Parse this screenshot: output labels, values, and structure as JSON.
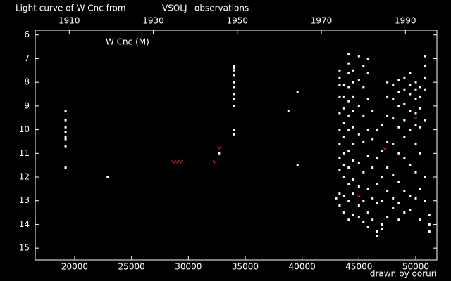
{
  "chart_data": {
    "type": "scatter",
    "title": {
      "prefix": "Light curve of W Cnc from",
      "source": "VSOLJ",
      "suffix": "observations"
    },
    "annotation": "W Cnc (M)",
    "credit": "drawn by ooruri",
    "xlim": [
      16530,
      51860
    ],
    "xticks": [
      20000,
      25000,
      30000,
      35000,
      40000,
      45000,
      50000
    ],
    "x2lim": [
      1901.9,
      1997.5
    ],
    "x2ticks": [
      1910,
      1930,
      1950,
      1970,
      1990
    ],
    "ylim": [
      15.5,
      5.8
    ],
    "yticks": [
      6,
      7,
      8,
      9,
      10,
      11,
      12,
      13,
      14,
      15
    ],
    "series": [
      {
        "color": "#ffffff",
        "marker": "dot",
        "x": [
          19200,
          19200,
          19200,
          19200,
          19200,
          19200,
          19200,
          19200,
          22900,
          32700,
          34000,
          34000,
          34000,
          34000,
          34000,
          34000,
          34000,
          34000,
          34000,
          34000,
          34000,
          38800,
          39600,
          39600,
          43000,
          43300,
          43300,
          43300,
          43300,
          43300,
          43300,
          43300,
          43300,
          43300,
          43300,
          43300,
          43700,
          43700,
          43700,
          43700,
          43700,
          43700,
          43700,
          43700,
          43700,
          43700,
          44100,
          44100,
          44100,
          44100,
          44100,
          44100,
          44100,
          44100,
          44100,
          44100,
          44100,
          44100,
          44500,
          44500,
          44500,
          44500,
          44500,
          44500,
          44500,
          44500,
          44500,
          44500,
          45000,
          45000,
          45000,
          45000,
          45000,
          45000,
          45000,
          45000,
          45400,
          45400,
          45400,
          45400,
          45400,
          45400,
          45400,
          45800,
          45800,
          45800,
          45800,
          45800,
          45800,
          45800,
          45800,
          46200,
          46200,
          46200,
          46200,
          46200,
          46600,
          46600,
          46600,
          46600,
          46600,
          46600,
          47000,
          47000,
          47000,
          47000,
          47000,
          47000,
          47500,
          47500,
          47500,
          47500,
          47500,
          47500,
          47500,
          48000,
          48000,
          48000,
          48000,
          48000,
          48000,
          48000,
          48500,
          48500,
          48500,
          48500,
          48500,
          48500,
          48500,
          48500,
          49000,
          49000,
          49000,
          49000,
          49000,
          49000,
          49000,
          49000,
          49500,
          49500,
          49500,
          49500,
          49500,
          49500,
          49500,
          49500,
          50000,
          50000,
          50000,
          50000,
          50000,
          50000,
          50000,
          50000,
          50400,
          50400,
          50400,
          50400,
          50400,
          50400,
          50400,
          50800,
          50800,
          50800,
          50800,
          50800,
          50800,
          50800,
          51200,
          51200,
          51200
        ],
        "values": [
          9.2,
          9.6,
          9.9,
          10.1,
          10.3,
          10.4,
          10.7,
          11.6,
          12.0,
          11.0,
          7.3,
          7.4,
          7.5,
          7.7,
          8.0,
          8.2,
          8.5,
          8.7,
          9.0,
          10.0,
          10.2,
          9.2,
          8.4,
          11.5,
          12.9,
          7.5,
          7.8,
          8.1,
          8.6,
          9.3,
          10.0,
          10.6,
          11.2,
          11.7,
          12.7,
          13.2,
          8.1,
          8.6,
          9.1,
          9.7,
          10.3,
          11.0,
          11.5,
          12.0,
          12.8,
          13.5,
          6.8,
          7.2,
          7.6,
          8.2,
          8.8,
          9.4,
          10.0,
          10.9,
          11.6,
          12.3,
          13.0,
          13.8,
          7.5,
          8.0,
          8.6,
          9.2,
          9.9,
          10.6,
          11.3,
          12.1,
          12.7,
          13.6,
          6.9,
          7.9,
          9.0,
          10.2,
          11.4,
          12.4,
          13.2,
          13.7,
          7.3,
          8.2,
          9.4,
          10.5,
          11.8,
          13.0,
          13.9,
          7.0,
          7.6,
          8.7,
          10.0,
          11.1,
          12.5,
          13.5,
          14.1,
          9.2,
          10.4,
          11.6,
          12.9,
          13.8,
          10.0,
          11.2,
          12.3,
          13.1,
          14.3,
          14.5,
          9.8,
          10.9,
          12.0,
          13.0,
          14.0,
          14.2,
          8.0,
          8.6,
          9.4,
          10.5,
          11.6,
          12.6,
          13.7,
          8.1,
          8.7,
          9.5,
          10.6,
          11.9,
          12.9,
          13.3,
          7.9,
          8.4,
          9.0,
          9.9,
          11.0,
          12.2,
          13.1,
          13.8,
          7.8,
          8.3,
          8.9,
          9.6,
          10.3,
          11.2,
          12.6,
          13.5,
          7.6,
          8.1,
          8.5,
          9.2,
          10.0,
          11.5,
          12.8,
          13.4,
          8.0,
          8.3,
          8.7,
          9.3,
          9.8,
          10.6,
          11.8,
          12.9,
          8.2,
          8.6,
          9.1,
          9.9,
          11.0,
          12.5,
          13.8,
          6.9,
          7.3,
          7.8,
          8.3,
          9.6,
          12.0,
          13.0,
          13.6,
          14.0,
          14.3
        ]
      },
      {
        "color": "#e02020",
        "marker": "v",
        "x": [
          28700,
          29000,
          29300,
          32300,
          32700,
          45000,
          47300,
          50000
        ],
        "values": [
          11.35,
          11.35,
          11.35,
          11.35,
          10.75,
          12.8,
          10.8,
          9.5
        ]
      }
    ],
    "title_color": "#ffffff",
    "source_color": "#e8d800",
    "credit_color": "#00b8ff"
  }
}
